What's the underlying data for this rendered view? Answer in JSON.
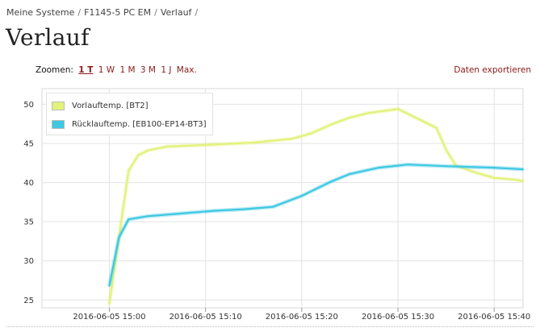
{
  "breadcrumb": {
    "items": [
      "Meine Systeme",
      "F1145-5 PC EM",
      "Verlauf"
    ],
    "separator": "/"
  },
  "page_title": "Verlauf",
  "toolbar": {
    "zoom_label": "Zoomen:",
    "zoom_options": [
      "1 T",
      "1 W",
      "1 M",
      "3 M",
      "1 J",
      "Max."
    ],
    "zoom_active_index": 0,
    "export_label": "Daten exportieren"
  },
  "colors": {
    "link": "#8b1a1a",
    "series1": "#e2f27a",
    "series2": "#3ec8e2",
    "grid": "#e3e3e3"
  },
  "chart_data": {
    "type": "line",
    "ylim": [
      24,
      52
    ],
    "yticks": [
      25,
      30,
      35,
      40,
      45,
      50
    ],
    "xlim": [
      "2016-06-05 14:53",
      "2016-06-05 15:43"
    ],
    "xticks": [
      "2016-06-05 15:00",
      "2016-06-05 15:10",
      "2016-06-05 15:20",
      "2016-06-05 15:30",
      "2016-06-05 15:40"
    ],
    "grid": true,
    "legend_position": "top-left",
    "series": [
      {
        "name": "Vorlauftemp. [BT2]",
        "color": "#e2f27a",
        "points": [
          [
            "2016-06-05 15:00",
            24.5
          ],
          [
            "2016-06-05 15:01",
            33.0
          ],
          [
            "2016-06-05 15:02",
            41.5
          ],
          [
            "2016-06-05 15:03",
            43.5
          ],
          [
            "2016-06-05 15:04",
            44.1
          ],
          [
            "2016-06-05 15:06",
            44.6
          ],
          [
            "2016-06-05 15:10",
            44.8
          ],
          [
            "2016-06-05 15:15",
            45.1
          ],
          [
            "2016-06-05 15:19",
            45.6
          ],
          [
            "2016-06-05 15:21",
            46.3
          ],
          [
            "2016-06-05 15:23",
            47.4
          ],
          [
            "2016-06-05 15:25",
            48.3
          ],
          [
            "2016-06-05 15:27",
            48.9
          ],
          [
            "2016-06-05 15:30",
            49.4
          ],
          [
            "2016-06-05 15:34",
            47.0
          ],
          [
            "2016-06-05 15:35",
            44.2
          ],
          [
            "2016-06-05 15:36",
            42.2
          ],
          [
            "2016-06-05 15:38",
            41.3
          ],
          [
            "2016-06-05 15:40",
            40.6
          ],
          [
            "2016-06-05 15:42",
            40.4
          ],
          [
            "2016-06-05 15:43",
            40.2
          ]
        ]
      },
      {
        "name": "Rücklauftemp. [EB100-EP14-BT3]",
        "color": "#3ec8e2",
        "points": [
          [
            "2016-06-05 15:00",
            26.8
          ],
          [
            "2016-06-05 15:01",
            33.0
          ],
          [
            "2016-06-05 15:02",
            35.3
          ],
          [
            "2016-06-05 15:04",
            35.7
          ],
          [
            "2016-06-05 15:07",
            36.0
          ],
          [
            "2016-06-05 15:11",
            36.4
          ],
          [
            "2016-06-05 15:14",
            36.6
          ],
          [
            "2016-06-05 15:17",
            36.9
          ],
          [
            "2016-06-05 15:20",
            38.3
          ],
          [
            "2016-06-05 15:23",
            40.1
          ],
          [
            "2016-06-05 15:25",
            41.1
          ],
          [
            "2016-06-05 15:28",
            41.9
          ],
          [
            "2016-06-05 15:31",
            42.3
          ],
          [
            "2016-06-05 15:35",
            42.1
          ],
          [
            "2016-06-05 15:40",
            41.9
          ],
          [
            "2016-06-05 15:43",
            41.7
          ]
        ]
      }
    ]
  }
}
